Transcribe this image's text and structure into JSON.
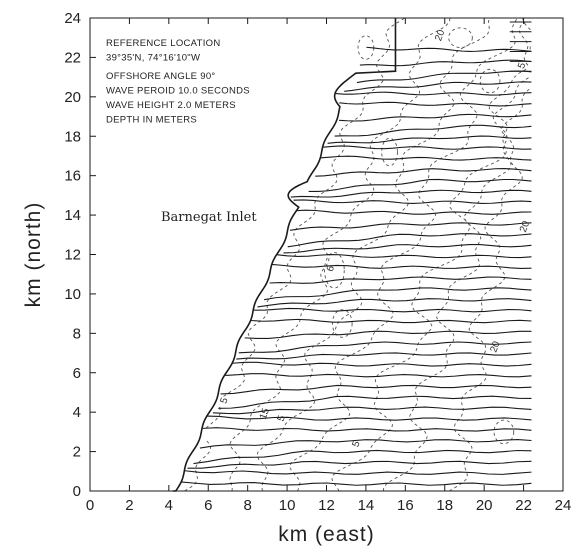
{
  "figure": {
    "xlabel": "km (east)",
    "ylabel": "km (north)",
    "x_ticks": [
      "0",
      "2",
      "4",
      "6",
      "8",
      "10",
      "12",
      "14",
      "16",
      "18",
      "20",
      "22",
      "24"
    ],
    "y_ticks": [
      "0",
      "2",
      "4",
      "6",
      "8",
      "10",
      "12",
      "14",
      "16",
      "18",
      "20",
      "22",
      "24"
    ],
    "xlim": [
      0,
      24
    ],
    "ylim": [
      0,
      24
    ],
    "annotation_lines": [
      "REFERENCE LOCATION",
      "39°35'N, 74°16'10\"W",
      "OFFSHORE ANGLE 90°",
      "WAVE PEROID 10.0 SECONDS",
      "WAVE HEIGHT 2.0 METERS",
      "DEPTH IN METERS"
    ],
    "place_label": "Barnegat Inlet",
    "contour_labels": [
      {
        "text": "5",
        "x": 6.9,
        "y": 4.4
      },
      {
        "text": "15",
        "x": 8.9,
        "y": 3.6
      },
      {
        "text": "5",
        "x": 9.8,
        "y": 3.5
      },
      {
        "text": "20",
        "x": 22.1,
        "y": 13.1
      },
      {
        "text": "20",
        "x": 20.6,
        "y": 7.0
      },
      {
        "text": "20",
        "x": 17.8,
        "y": 22.8
      },
      {
        "text": "5",
        "x": 22.0,
        "y": 21.4
      },
      {
        "text": "6",
        "x": 12.3,
        "y": 11.1
      },
      {
        "text": "5",
        "x": 13.6,
        "y": 2.2
      }
    ],
    "colors": {
      "lines": "#1a1a1a",
      "contours": "#555555",
      "background": "#ffffff"
    }
  }
}
